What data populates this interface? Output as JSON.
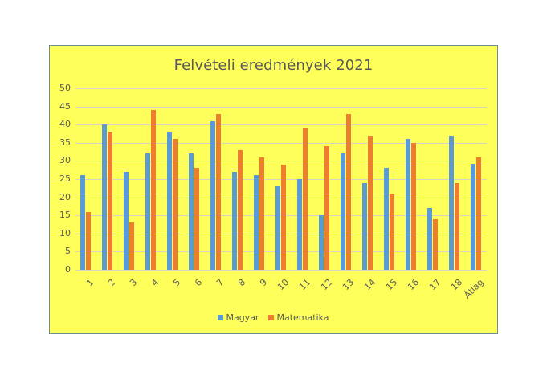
{
  "chart_data": {
    "type": "bar",
    "title": "Felvételi eredmények 2021",
    "xlabel": "",
    "ylabel": "",
    "ylim": [
      0,
      50
    ],
    "yticks": [
      0,
      5,
      10,
      15,
      20,
      25,
      30,
      35,
      40,
      45,
      50
    ],
    "grid": true,
    "legend_position": "bottom",
    "categories": [
      "1",
      "2",
      "3",
      "4",
      "5",
      "6",
      "7",
      "8",
      "9",
      "10",
      "11",
      "12",
      "13",
      "14",
      "15",
      "16",
      "17",
      "18",
      "Átlag"
    ],
    "series": [
      {
        "name": "Magyar",
        "color": "#5B9BD5",
        "values": [
          26,
          40,
          27,
          32,
          38,
          32,
          41,
          27,
          26,
          23,
          25,
          15,
          32,
          24,
          28,
          36,
          17,
          37,
          29.2
        ]
      },
      {
        "name": "Matematika",
        "color": "#ED7D31",
        "values": [
          16,
          38,
          13,
          44,
          36,
          28,
          43,
          33,
          31,
          29,
          39,
          34,
          43,
          37,
          21,
          35,
          14,
          24,
          31
        ]
      }
    ]
  },
  "legend": {
    "items": [
      {
        "label": "Magyar",
        "color": "#5B9BD5"
      },
      {
        "label": "Matematika",
        "color": "#ED7D31"
      }
    ]
  },
  "colors": {
    "background": "#FFFF5C",
    "gridline": "#D5D5C4",
    "text": "#595959",
    "border": "#6B8E8E"
  }
}
